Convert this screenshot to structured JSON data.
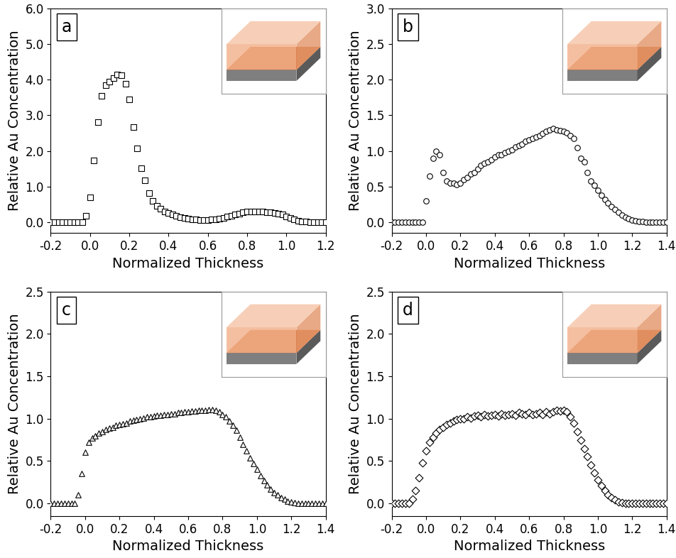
{
  "chart_data": [
    {
      "type": "scatter",
      "panel": "a",
      "xlabel": "Normalized Thickness",
      "ylabel": "Relative Au Concentration",
      "xlim": [
        -0.2,
        1.2
      ],
      "ylim": [
        -0.3,
        6.0
      ],
      "xticks": [
        -0.2,
        {
          "value": 0,
          "label": "0.0"
        },
        0.2,
        0.4,
        0.6,
        0.8,
        {
          "value": 1,
          "label": "1.0"
        },
        1.2
      ],
      "yticks": [
        {
          "value": 0,
          "label": "0.0"
        },
        {
          "value": 1,
          "label": "1.0"
        },
        {
          "value": 2,
          "label": "2.0"
        },
        {
          "value": 3,
          "label": "3.0"
        },
        {
          "value": 4,
          "label": "4.0"
        },
        {
          "value": 5,
          "label": "5.0"
        },
        {
          "value": 6,
          "label": "6.0"
        }
      ],
      "marker": "square",
      "color": "#000000",
      "x": [
        -0.2,
        -0.18,
        -0.16,
        -0.14,
        -0.12,
        -0.1,
        -0.08,
        -0.06,
        -0.04,
        -0.02,
        0.0,
        0.02,
        0.04,
        0.06,
        0.08,
        0.1,
        0.12,
        0.14,
        0.16,
        0.18,
        0.2,
        0.22,
        0.24,
        0.26,
        0.28,
        0.3,
        0.32,
        0.34,
        0.36,
        0.38,
        0.4,
        0.42,
        0.44,
        0.46,
        0.48,
        0.5,
        0.52,
        0.54,
        0.56,
        0.58,
        0.6,
        0.62,
        0.64,
        0.66,
        0.68,
        0.7,
        0.72,
        0.74,
        0.76,
        0.78,
        0.8,
        0.82,
        0.84,
        0.86,
        0.88,
        0.9,
        0.92,
        0.94,
        0.96,
        0.98,
        1.0,
        1.02,
        1.04,
        1.06,
        1.08,
        1.1,
        1.12,
        1.14,
        1.16,
        1.18,
        1.2
      ],
      "values": [
        0,
        0,
        0,
        0,
        0,
        0,
        0,
        0,
        0,
        0.18,
        0.7,
        1.73,
        2.82,
        3.55,
        3.85,
        3.95,
        4.05,
        4.15,
        4.13,
        3.88,
        3.45,
        2.67,
        2.07,
        1.52,
        1.17,
        0.83,
        0.6,
        0.47,
        0.38,
        0.31,
        0.26,
        0.22,
        0.18,
        0.15,
        0.13,
        0.11,
        0.09,
        0.08,
        0.07,
        0.07,
        0.07,
        0.08,
        0.09,
        0.11,
        0.13,
        0.16,
        0.19,
        0.22,
        0.25,
        0.28,
        0.3,
        0.31,
        0.31,
        0.3,
        0.3,
        0.29,
        0.28,
        0.27,
        0.25,
        0.22,
        0.17,
        0.12,
        0.08,
        0.05,
        0.03,
        0.02,
        0.01,
        0,
        0,
        0,
        0
      ]
    },
    {
      "type": "scatter",
      "panel": "b",
      "xlabel": "Normalized Thickness",
      "ylabel": "Relative Au Concentration",
      "xlim": [
        -0.2,
        1.4
      ],
      "ylim": [
        -0.15,
        3.0
      ],
      "xticks": [
        -0.2,
        {
          "value": 0,
          "label": "0.0"
        },
        0.2,
        0.4,
        0.6,
        0.8,
        {
          "value": 1,
          "label": "1.0"
        },
        1.2,
        1.4
      ],
      "yticks": [
        {
          "value": 0,
          "label": "0.0"
        },
        0.5,
        {
          "value": 1,
          "label": "1.0"
        },
        1.5,
        {
          "value": 2,
          "label": "2.0"
        },
        2.5,
        {
          "value": 3,
          "label": "3.0"
        }
      ],
      "marker": "circle",
      "color": "#000000",
      "x": [
        -0.2,
        -0.18,
        -0.16,
        -0.14,
        -0.12,
        -0.1,
        -0.08,
        -0.06,
        -0.04,
        -0.02,
        0.0,
        0.02,
        0.04,
        0.06,
        0.08,
        0.1,
        0.12,
        0.14,
        0.16,
        0.18,
        0.2,
        0.22,
        0.24,
        0.26,
        0.28,
        0.3,
        0.32,
        0.34,
        0.36,
        0.38,
        0.4,
        0.42,
        0.44,
        0.46,
        0.48,
        0.5,
        0.52,
        0.54,
        0.56,
        0.58,
        0.6,
        0.62,
        0.64,
        0.66,
        0.68,
        0.7,
        0.72,
        0.74,
        0.76,
        0.78,
        0.8,
        0.82,
        0.84,
        0.86,
        0.88,
        0.9,
        0.92,
        0.94,
        0.96,
        0.98,
        1.0,
        1.02,
        1.04,
        1.06,
        1.08,
        1.1,
        1.12,
        1.14,
        1.16,
        1.18,
        1.2,
        1.22,
        1.24,
        1.26,
        1.28,
        1.3,
        1.32,
        1.34,
        1.36,
        1.38,
        1.4
      ],
      "values": [
        0,
        0,
        0,
        0,
        0,
        0,
        0,
        0,
        0,
        0,
        0.3,
        0.65,
        0.9,
        1.0,
        0.95,
        0.7,
        0.58,
        0.55,
        0.55,
        0.53,
        0.55,
        0.6,
        0.63,
        0.68,
        0.7,
        0.75,
        0.8,
        0.83,
        0.85,
        0.88,
        0.92,
        0.95,
        0.95,
        0.98,
        1.0,
        1.02,
        1.06,
        1.08,
        1.1,
        1.14,
        1.16,
        1.18,
        1.2,
        1.22,
        1.25,
        1.28,
        1.3,
        1.32,
        1.3,
        1.29,
        1.28,
        1.26,
        1.22,
        1.18,
        1.05,
        0.9,
        0.85,
        0.7,
        0.58,
        0.52,
        0.45,
        0.38,
        0.32,
        0.27,
        0.22,
        0.18,
        0.14,
        0.1,
        0.07,
        0.05,
        0.03,
        0.02,
        0.01,
        0.01,
        0,
        0,
        0,
        0,
        0,
        0,
        0
      ]
    },
    {
      "type": "scatter",
      "panel": "c",
      "xlabel": "Normalized Thickness",
      "ylabel": "Relative Au Concentration",
      "xlim": [
        -0.2,
        1.4
      ],
      "ylim": [
        -0.15,
        2.5
      ],
      "xticks": [
        -0.2,
        {
          "value": 0,
          "label": "0.0"
        },
        0.2,
        0.4,
        0.6,
        0.8,
        {
          "value": 1,
          "label": "1.0"
        },
        1.2,
        1.4
      ],
      "yticks": [
        {
          "value": 0,
          "label": "0.0"
        },
        0.5,
        {
          "value": 1,
          "label": "1.0"
        },
        1.5,
        {
          "value": 2,
          "label": "2.0"
        },
        2.5
      ],
      "marker": "triangle",
      "color": "#000000",
      "x": [
        -0.2,
        -0.18,
        -0.16,
        -0.14,
        -0.12,
        -0.1,
        -0.08,
        -0.06,
        -0.04,
        -0.02,
        0.0,
        0.02,
        0.04,
        0.06,
        0.08,
        0.1,
        0.12,
        0.14,
        0.16,
        0.18,
        0.2,
        0.22,
        0.24,
        0.26,
        0.28,
        0.3,
        0.32,
        0.34,
        0.36,
        0.38,
        0.4,
        0.42,
        0.44,
        0.46,
        0.48,
        0.5,
        0.52,
        0.54,
        0.56,
        0.58,
        0.6,
        0.62,
        0.64,
        0.66,
        0.68,
        0.7,
        0.72,
        0.74,
        0.76,
        0.78,
        0.8,
        0.82,
        0.84,
        0.86,
        0.88,
        0.9,
        0.92,
        0.94,
        0.96,
        0.98,
        1.0,
        1.02,
        1.04,
        1.06,
        1.08,
        1.1,
        1.12,
        1.14,
        1.16,
        1.18,
        1.2,
        1.22,
        1.24,
        1.26,
        1.28,
        1.3,
        1.32,
        1.34,
        1.36,
        1.38,
        1.4
      ],
      "values": [
        0,
        0,
        0,
        0,
        0,
        0,
        0,
        0,
        0.1,
        0.35,
        0.6,
        0.72,
        0.77,
        0.8,
        0.83,
        0.85,
        0.87,
        0.89,
        0.9,
        0.92,
        0.93,
        0.94,
        0.95,
        0.97,
        0.98,
        0.99,
        1.0,
        1.01,
        1.02,
        1.02,
        1.03,
        1.04,
        1.04,
        1.05,
        1.05,
        1.06,
        1.06,
        1.07,
        1.07,
        1.08,
        1.08,
        1.09,
        1.09,
        1.1,
        1.1,
        1.1,
        1.11,
        1.11,
        1.1,
        1.08,
        1.05,
        1.02,
        0.97,
        0.92,
        0.86,
        0.78,
        0.7,
        0.62,
        0.54,
        0.47,
        0.4,
        0.33,
        0.27,
        0.22,
        0.17,
        0.13,
        0.1,
        0.07,
        0.05,
        0.03,
        0.02,
        0.01,
        0,
        0,
        0,
        0,
        0,
        0,
        0,
        0,
        0
      ]
    },
    {
      "type": "scatter",
      "panel": "d",
      "xlabel": "Normalized Thickness",
      "ylabel": "Relative Au Concentration",
      "xlim": [
        -0.2,
        1.4
      ],
      "ylim": [
        -0.15,
        2.5
      ],
      "xticks": [
        -0.2,
        {
          "value": 0,
          "label": "0.0"
        },
        0.2,
        0.4,
        0.6,
        0.8,
        {
          "value": 1,
          "label": "1.0"
        },
        1.2,
        1.4
      ],
      "yticks": [
        {
          "value": 0,
          "label": "0.0"
        },
        0.5,
        {
          "value": 1,
          "label": "1.0"
        },
        1.5,
        {
          "value": 2,
          "label": "2.0"
        },
        2.5
      ],
      "marker": "diamond",
      "color": "#000000",
      "x": [
        -0.2,
        -0.18,
        -0.16,
        -0.14,
        -0.12,
        -0.1,
        -0.08,
        -0.06,
        -0.04,
        -0.02,
        0.0,
        0.02,
        0.04,
        0.06,
        0.08,
        0.1,
        0.12,
        0.14,
        0.16,
        0.18,
        0.2,
        0.22,
        0.24,
        0.26,
        0.28,
        0.3,
        0.32,
        0.34,
        0.36,
        0.38,
        0.4,
        0.42,
        0.44,
        0.46,
        0.48,
        0.5,
        0.52,
        0.54,
        0.56,
        0.58,
        0.6,
        0.62,
        0.64,
        0.66,
        0.68,
        0.7,
        0.72,
        0.74,
        0.76,
        0.78,
        0.8,
        0.82,
        0.84,
        0.86,
        0.88,
        0.9,
        0.92,
        0.94,
        0.96,
        0.98,
        1.0,
        1.02,
        1.04,
        1.06,
        1.08,
        1.1,
        1.12,
        1.14,
        1.16,
        1.18,
        1.2,
        1.22,
        1.24,
        1.26,
        1.28,
        1.3,
        1.32,
        1.34,
        1.36,
        1.38,
        1.4
      ],
      "values": [
        0,
        0,
        0,
        0,
        0,
        0,
        0.05,
        0.15,
        0.3,
        0.48,
        0.62,
        0.72,
        0.78,
        0.83,
        0.87,
        0.9,
        0.93,
        0.95,
        0.97,
        0.99,
        1.0,
        1.0,
        1.02,
        1.01,
        1.03,
        1.04,
        1.02,
        1.05,
        1.03,
        1.04,
        1.05,
        1.03,
        1.06,
        1.04,
        1.05,
        1.06,
        1.04,
        1.07,
        1.06,
        1.05,
        1.07,
        1.05,
        1.06,
        1.07,
        1.05,
        1.08,
        1.06,
        1.08,
        1.1,
        1.09,
        1.1,
        1.08,
        1.02,
        0.95,
        0.85,
        0.75,
        0.65,
        0.55,
        0.45,
        0.36,
        0.28,
        0.21,
        0.15,
        0.1,
        0.07,
        0.04,
        0.02,
        0.01,
        0,
        0,
        0,
        0,
        0,
        0,
        0,
        0,
        0,
        0,
        0,
        0,
        0
      ]
    }
  ]
}
